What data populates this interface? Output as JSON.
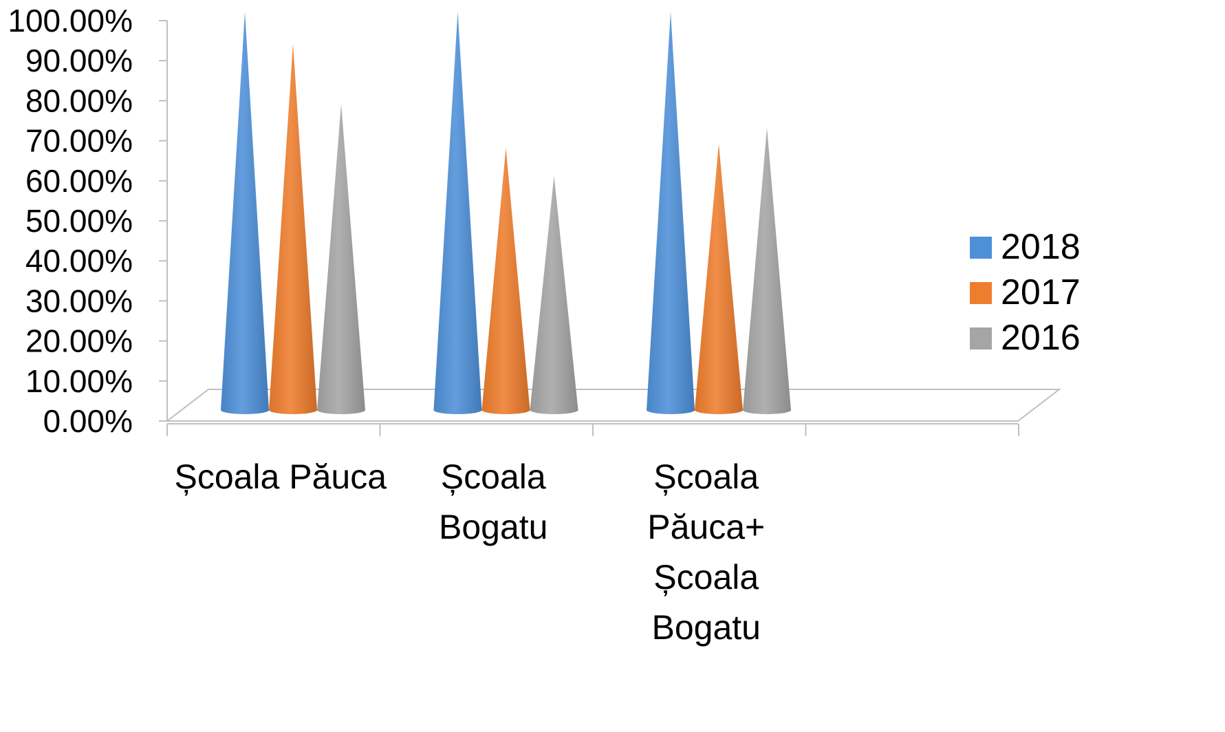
{
  "chart_data": {
    "type": "bar",
    "bar_shape": "cone-3d",
    "categories": [
      [
        "Școala Păuca"
      ],
      [
        "Școala",
        "Bogatu"
      ],
      [
        "Școala",
        "Păuca+",
        "Școala",
        "Bogatu"
      ]
    ],
    "series": [
      {
        "name": "2018",
        "color": "#4e90d8",
        "values": [
          1.0,
          1.0,
          1.0
        ]
      },
      {
        "name": "2017",
        "color": "#ee7d2e",
        "values": [
          0.92,
          0.66,
          0.67
        ]
      },
      {
        "name": "2016",
        "color": "#a5a5a5",
        "values": [
          0.77,
          0.59,
          0.71
        ]
      }
    ],
    "y_ticks": [
      "0.00%",
      "10.00%",
      "20.00%",
      "30.00%",
      "40.00%",
      "50.00%",
      "60.00%",
      "70.00%",
      "80.00%",
      "90.00%",
      "100.00%"
    ],
    "ylim": [
      0,
      1
    ],
    "title": "",
    "xlabel": "",
    "ylabel": "",
    "grid": false,
    "legend_position": "right"
  }
}
